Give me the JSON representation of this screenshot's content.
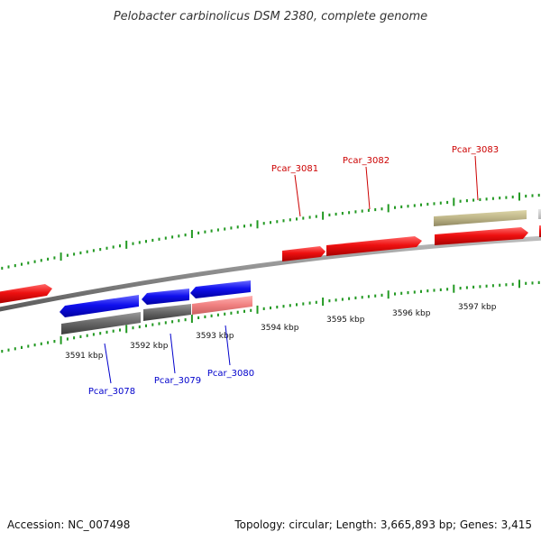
{
  "title": "Pelobacter carbinolicus DSM 2380, complete genome",
  "footer": {
    "accession": "Accession: NC_007498",
    "summary": "Topology: circular; Length: 3,665,893 bp; Genes: 3,415"
  },
  "colors": {
    "forward_gene": "#ee1111",
    "reverse_gene": "#1111ee",
    "tick": "#229922",
    "backbone": "#888888",
    "forward_label": "#cc0000",
    "reverse_label": "#0000cc"
  },
  "scale": {
    "labels": [
      "3591 kbp",
      "3592 kbp",
      "3593 kbp",
      "3594 kbp",
      "3595 kbp",
      "3596 kbp",
      "3597 kbp"
    ]
  },
  "genes": {
    "forward": [
      "Pcar_3081",
      "Pcar_3082",
      "Pcar_3083"
    ],
    "reverse": [
      "Pcar_3078",
      "Pcar_3079",
      "Pcar_3080"
    ]
  }
}
